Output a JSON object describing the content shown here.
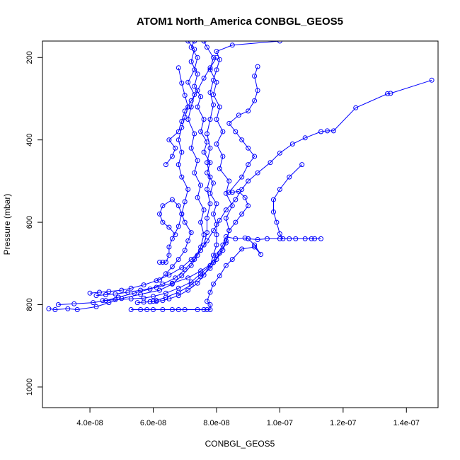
{
  "chart_data": {
    "type": "line",
    "title": "ATOM1 North_America CONBGL_GEOS5",
    "xlabel": "CONBGL_GEOS5",
    "ylabel": "Pressure (mbar)",
    "xlim": [
      2.5e-08,
      1.5e-07
    ],
    "ylim": [
      1050,
      160
    ],
    "y_reversed": true,
    "x_ticks": [
      4e-08,
      6e-08,
      8e-08,
      1e-07,
      1.2e-07,
      1.4e-07
    ],
    "x_tick_labels": [
      "4.0e-08",
      "6.0e-08",
      "8.0e-08",
      "1.0e-07",
      "1.2e-07",
      "1.4e-07"
    ],
    "y_ticks": [
      200,
      400,
      600,
      800,
      1000
    ],
    "y_tick_labels": [
      "200",
      "400",
      "600",
      "800",
      "1000"
    ],
    "grid": false,
    "legend": "none",
    "color": "#0000ff",
    "marker": "open-circle",
    "series": [
      {
        "points": [
          [
            2.7e-08,
            810
          ],
          [
            2.9e-08,
            812
          ],
          [
            3.3e-08,
            810
          ],
          [
            3.6e-08,
            812
          ],
          [
            4.2e-08,
            805
          ],
          [
            4.6e-08,
            795
          ],
          [
            5e-08,
            785
          ],
          [
            5.6e-08,
            775
          ],
          [
            6.2e-08,
            765
          ],
          [
            6.6e-08,
            750
          ],
          [
            6.9e-08,
            730
          ],
          [
            7.2e-08,
            705
          ],
          [
            7.4e-08,
            680
          ],
          [
            7.6e-08,
            655
          ],
          [
            7.7e-08,
            625
          ],
          [
            7.7e-08,
            590
          ],
          [
            7.8e-08,
            555
          ],
          [
            7.7e-08,
            520
          ],
          [
            7.8e-08,
            490
          ],
          [
            7.7e-08,
            455
          ],
          [
            7.8e-08,
            420
          ],
          [
            7.7e-08,
            385
          ],
          [
            7.8e-08,
            350
          ],
          [
            7.9e-08,
            315
          ],
          [
            7.8e-08,
            285
          ],
          [
            7.9e-08,
            255
          ],
          [
            8e-08,
            230
          ],
          [
            8.1e-08,
            205
          ],
          [
            8e-08,
            185
          ],
          [
            8.5e-08,
            170
          ],
          [
            1e-07,
            160
          ]
        ]
      },
      {
        "points": [
          [
            3e-08,
            800
          ],
          [
            3.5e-08,
            798
          ],
          [
            4.1e-08,
            795
          ],
          [
            4.5e-08,
            790
          ],
          [
            4.9e-08,
            782
          ],
          [
            5.4e-08,
            772
          ],
          [
            5.9e-08,
            762
          ],
          [
            6.3e-08,
            750
          ],
          [
            6.7e-08,
            735
          ],
          [
            7e-08,
            715
          ],
          [
            7.3e-08,
            690
          ],
          [
            7.5e-08,
            660
          ],
          [
            7.6e-08,
            630
          ],
          [
            7.5e-08,
            600
          ],
          [
            7.6e-08,
            570
          ],
          [
            7.4e-08,
            540
          ],
          [
            7.5e-08,
            510
          ],
          [
            7.3e-08,
            480
          ],
          [
            7.4e-08,
            450
          ],
          [
            7.2e-08,
            420
          ],
          [
            7.3e-08,
            385
          ],
          [
            7.1e-08,
            350
          ],
          [
            7.2e-08,
            320
          ],
          [
            7.3e-08,
            290
          ],
          [
            7.1e-08,
            260
          ],
          [
            7.3e-08,
            230
          ],
          [
            7.4e-08,
            200
          ],
          [
            7.2e-08,
            175
          ],
          [
            7.3e-08,
            160
          ]
        ]
      },
      {
        "points": [
          [
            4.2e-08,
            778
          ],
          [
            4.5e-08,
            776
          ],
          [
            4.8e-08,
            774
          ],
          [
            5.2e-08,
            770
          ],
          [
            5.6e-08,
            765
          ],
          [
            6.1e-08,
            758
          ],
          [
            6.6e-08,
            748
          ],
          [
            7.1e-08,
            735
          ],
          [
            7.5e-08,
            718
          ],
          [
            7.9e-08,
            698
          ],
          [
            8.1e-08,
            675
          ],
          [
            8.3e-08,
            650
          ],
          [
            8.4e-08,
            620
          ],
          [
            8.3e-08,
            590
          ],
          [
            8.5e-08,
            560
          ],
          [
            8.3e-08,
            530
          ],
          [
            8.4e-08,
            500
          ],
          [
            8.1e-08,
            470
          ],
          [
            8.2e-08,
            440
          ],
          [
            8e-08,
            410
          ],
          [
            8.2e-08,
            380
          ],
          [
            8e-08,
            350
          ],
          [
            8.1e-08,
            320
          ],
          [
            7.9e-08,
            290
          ],
          [
            8e-08,
            260
          ],
          [
            7.8e-08,
            230
          ],
          [
            7.9e-08,
            200
          ],
          [
            7.7e-08,
            175
          ],
          [
            7.6e-08,
            160
          ]
        ]
      },
      {
        "points": [
          [
            4.4e-08,
            790
          ],
          [
            4.8e-08,
            788
          ],
          [
            5.3e-08,
            786
          ],
          [
            5.7e-08,
            784
          ],
          [
            6e-08,
            780
          ],
          [
            6.4e-08,
            772
          ],
          [
            6.8e-08,
            760
          ],
          [
            7.2e-08,
            745
          ],
          [
            7.5e-08,
            725
          ],
          [
            7.8e-08,
            705
          ],
          [
            8e-08,
            680
          ],
          [
            8.2e-08,
            655
          ],
          [
            8.3e-08,
            635
          ],
          [
            8.6e-08,
            640
          ],
          [
            8.9e-08,
            638
          ],
          [
            9e-08,
            640
          ],
          [
            9.3e-08,
            642
          ],
          [
            9.6e-08,
            640
          ],
          [
            1e-07,
            640
          ],
          [
            1.03e-07,
            640
          ],
          [
            1.05e-07,
            640
          ],
          [
            1.08e-07,
            640
          ],
          [
            1.1e-07,
            640
          ],
          [
            1.11e-07,
            640
          ],
          [
            1.13e-07,
            640
          ]
        ]
      },
      {
        "points": [
          [
            4e-08,
            772
          ],
          [
            4.3e-08,
            770
          ],
          [
            4.6e-08,
            768
          ],
          [
            5e-08,
            765
          ],
          [
            5.3e-08,
            760
          ],
          [
            5.7e-08,
            752
          ],
          [
            6.1e-08,
            742
          ],
          [
            6.5e-08,
            728
          ],
          [
            6.9e-08,
            710
          ],
          [
            7.2e-08,
            690
          ],
          [
            7.5e-08,
            668
          ],
          [
            7.7e-08,
            645
          ],
          [
            7.9e-08,
            620
          ],
          [
            8.1e-08,
            595
          ],
          [
            8.3e-08,
            570
          ],
          [
            8.6e-08,
            545
          ],
          [
            8.8e-08,
            520
          ],
          [
            9e-08,
            500
          ],
          [
            9.3e-08,
            480
          ],
          [
            9.7e-08,
            455
          ],
          [
            1e-07,
            432
          ],
          [
            1.04e-07,
            410
          ],
          [
            1.08e-07,
            395
          ],
          [
            1.13e-07,
            380
          ],
          [
            1.15e-07,
            378
          ],
          [
            1.17e-07,
            378
          ],
          [
            1.24e-07,
            322
          ],
          [
            1.34e-07,
            288
          ],
          [
            1.35e-07,
            287
          ],
          [
            1.48e-07,
            255
          ]
        ]
      },
      {
        "points": [
          [
            1.07e-07,
            460
          ],
          [
            1.03e-07,
            490
          ],
          [
            1e-07,
            520
          ],
          [
            9.8e-08,
            545
          ],
          [
            9.8e-08,
            575
          ],
          [
            9.9e-08,
            600
          ],
          [
            1e-07,
            628
          ],
          [
            1.01e-07,
            640
          ]
        ]
      },
      {
        "points": [
          [
            5.3e-08,
            812
          ],
          [
            5.6e-08,
            812
          ],
          [
            5.8e-08,
            812
          ],
          [
            6e-08,
            812
          ],
          [
            6.3e-08,
            812
          ],
          [
            6.6e-08,
            812
          ],
          [
            6.8e-08,
            812
          ],
          [
            7e-08,
            812
          ],
          [
            7.4e-08,
            812
          ],
          [
            7.6e-08,
            812
          ],
          [
            7.7e-08,
            812
          ],
          [
            7.8e-08,
            812
          ],
          [
            7.8e-08,
            800
          ],
          [
            7.7e-08,
            792
          ],
          [
            7.8e-08,
            770
          ],
          [
            7.9e-08,
            750
          ],
          [
            8.1e-08,
            730
          ],
          [
            8.3e-08,
            705
          ],
          [
            8.5e-08,
            690
          ],
          [
            8.8e-08,
            665
          ],
          [
            9.2e-08,
            660
          ],
          [
            9.4e-08,
            678
          ],
          [
            9.2e-08,
            655
          ],
          [
            9e-08,
            640
          ]
        ]
      },
      {
        "points": [
          [
            5.5e-08,
            795
          ],
          [
            5.7e-08,
            794
          ],
          [
            5.9e-08,
            793
          ],
          [
            6.1e-08,
            792
          ],
          [
            6.3e-08,
            790
          ],
          [
            6.5e-08,
            786
          ],
          [
            6.8e-08,
            778
          ],
          [
            7.1e-08,
            765
          ],
          [
            7.4e-08,
            748
          ],
          [
            7.6e-08,
            728
          ],
          [
            7.8e-08,
            705
          ],
          [
            7.9e-08,
            680
          ],
          [
            8e-08,
            655
          ],
          [
            8e-08,
            630
          ],
          [
            8e-08,
            605
          ],
          [
            7.9e-08,
            580
          ],
          [
            8e-08,
            555
          ],
          [
            7.8e-08,
            530
          ],
          [
            7.9e-08,
            505
          ],
          [
            7.7e-08,
            480
          ],
          [
            7.8e-08,
            455
          ],
          [
            7.6e-08,
            430
          ],
          [
            7.7e-08,
            405
          ],
          [
            7.5e-08,
            380
          ],
          [
            7.6e-08,
            350
          ],
          [
            7.4e-08,
            320
          ],
          [
            7.5e-08,
            295
          ],
          [
            7.3e-08,
            270
          ],
          [
            7.4e-08,
            240
          ],
          [
            7.2e-08,
            210
          ],
          [
            7.3e-08,
            180
          ],
          [
            7.1e-08,
            160
          ]
        ]
      },
      {
        "points": [
          [
            5.9e-08,
            793
          ],
          [
            6e-08,
            792
          ],
          [
            6.1e-08,
            790
          ],
          [
            6.4e-08,
            782
          ],
          [
            6.8e-08,
            770
          ],
          [
            7.2e-08,
            752
          ],
          [
            7.5e-08,
            732
          ],
          [
            7.8e-08,
            712
          ],
          [
            8e-08,
            690
          ],
          [
            8.2e-08,
            668
          ],
          [
            8.3e-08,
            645
          ],
          [
            8.4e-08,
            620
          ],
          [
            8.6e-08,
            600
          ],
          [
            8.8e-08,
            580
          ],
          [
            9e-08,
            560
          ],
          [
            8.9e-08,
            540
          ],
          [
            8.7e-08,
            525
          ],
          [
            8.5e-08,
            527
          ],
          [
            8.4e-08,
            527
          ],
          [
            8.8e-08,
            490
          ],
          [
            9e-08,
            460
          ],
          [
            9.2e-08,
            440
          ],
          [
            9e-08,
            420
          ],
          [
            8.8e-08,
            400
          ],
          [
            8.6e-08,
            380
          ],
          [
            8.4e-08,
            360
          ],
          [
            8.7e-08,
            340
          ],
          [
            9e-08,
            330
          ],
          [
            9.2e-08,
            305
          ],
          [
            9.3e-08,
            280
          ],
          [
            9.2e-08,
            245
          ],
          [
            9.3e-08,
            222
          ]
        ]
      },
      {
        "points": [
          [
            6.2e-08,
            697
          ],
          [
            6.3e-08,
            697
          ],
          [
            6.4e-08,
            697
          ],
          [
            6.5e-08,
            680
          ],
          [
            6.5e-08,
            660
          ],
          [
            6.6e-08,
            640
          ],
          [
            6.8e-08,
            610
          ],
          [
            6.9e-08,
            580
          ],
          [
            7e-08,
            550
          ],
          [
            7.1e-08,
            520
          ],
          [
            6.9e-08,
            490
          ],
          [
            6.8e-08,
            460
          ],
          [
            6.9e-08,
            430
          ],
          [
            6.8e-08,
            400
          ],
          [
            6.9e-08,
            370
          ],
          [
            7e-08,
            345
          ],
          [
            7.1e-08,
            320
          ],
          [
            7e-08,
            292
          ],
          [
            6.9e-08,
            262
          ],
          [
            6.8e-08,
            225
          ]
        ]
      },
      {
        "points": [
          [
            6.4e-08,
            460
          ],
          [
            6.6e-08,
            440
          ],
          [
            6.7e-08,
            420
          ],
          [
            6.5e-08,
            400
          ],
          [
            6.8e-08,
            380
          ],
          [
            6.9e-08,
            355
          ],
          [
            7e-08,
            330
          ],
          [
            7.2e-08,
            305
          ],
          [
            7.4e-08,
            280
          ],
          [
            7.6e-08,
            250
          ],
          [
            7.8e-08,
            225
          ],
          [
            8e-08,
            200
          ]
        ]
      },
      {
        "points": [
          [
            6.2e-08,
            740
          ],
          [
            6.4e-08,
            725
          ],
          [
            6.6e-08,
            708
          ],
          [
            6.8e-08,
            690
          ],
          [
            7e-08,
            668
          ],
          [
            7.1e-08,
            645
          ],
          [
            7.2e-08,
            625
          ],
          [
            7e-08,
            600
          ],
          [
            6.9e-08,
            580
          ],
          [
            6.8e-08,
            560
          ],
          [
            6.6e-08,
            545
          ],
          [
            6.3e-08,
            560
          ],
          [
            6.2e-08,
            580
          ],
          [
            6.3e-08,
            600
          ],
          [
            6.5e-08,
            612
          ],
          [
            6.7e-08,
            630
          ]
        ]
      }
    ]
  }
}
